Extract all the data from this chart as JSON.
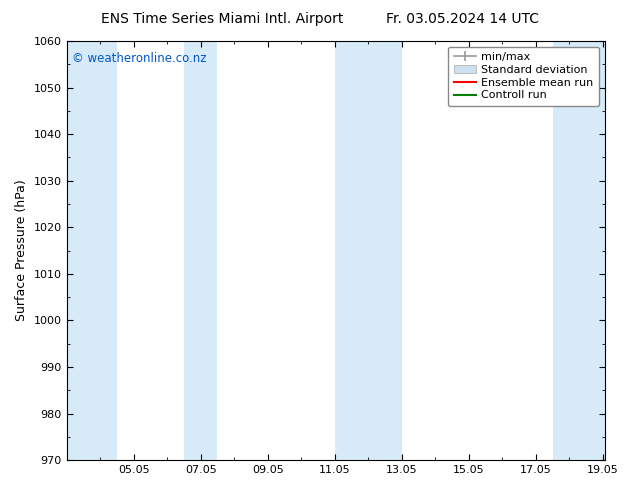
{
  "title_left": "ENS Time Series Miami Intl. Airport",
  "title_right": "Fr. 03.05.2024 14 UTC",
  "ylabel": "Surface Pressure (hPa)",
  "ylim": [
    970,
    1060
  ],
  "yticks": [
    970,
    980,
    990,
    1000,
    1010,
    1020,
    1030,
    1040,
    1050,
    1060
  ],
  "xtick_positions": [
    5,
    7,
    9,
    11,
    13,
    15,
    17,
    19
  ],
  "xtick_labels": [
    "05.05",
    "07.05",
    "09.05",
    "11.05",
    "13.05",
    "15.05",
    "17.05",
    "19.05"
  ],
  "xmin": 3.0,
  "xmax": 19.05,
  "watermark": "© weatheronline.co.nz",
  "watermark_color": "#0055cc",
  "bg_color": "#ffffff",
  "plot_bg_color": "#ffffff",
  "shaded_bands": [
    {
      "x_start": 3.0,
      "x_end": 4.5,
      "color": "#d6eaf8"
    },
    {
      "x_start": 6.5,
      "x_end": 7.5,
      "color": "#d6eaf8"
    },
    {
      "x_start": 11.0,
      "x_end": 13.0,
      "color": "#d6eaf8"
    },
    {
      "x_start": 17.5,
      "x_end": 19.05,
      "color": "#d6eaf8"
    }
  ],
  "legend_entries": [
    {
      "label": "min/max",
      "color": "#999999",
      "type": "errorbar"
    },
    {
      "label": "Standard deviation",
      "color": "#cce0f0",
      "type": "rect"
    },
    {
      "label": "Ensemble mean run",
      "color": "#ff0000",
      "type": "line"
    },
    {
      "label": "Controll run",
      "color": "#008000",
      "type": "line"
    }
  ],
  "spine_color": "#000000",
  "title_fontsize": 10,
  "label_fontsize": 9,
  "tick_fontsize": 8,
  "legend_fontsize": 8
}
